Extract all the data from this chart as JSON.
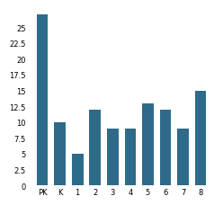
{
  "categories": [
    "PK",
    "K",
    "1",
    "2",
    "3",
    "4",
    "5",
    "6",
    "7",
    "8"
  ],
  "values": [
    27,
    10,
    5,
    12,
    9,
    9,
    13,
    12,
    9,
    15
  ],
  "bar_color": "#2e6b8a",
  "ylim_max": 28,
  "yticks": [
    0,
    2.5,
    5,
    7.5,
    10,
    12.5,
    15,
    17.5,
    20,
    22.5,
    25
  ],
  "background_color": "#ffffff",
  "tick_labelsize": 6,
  "bar_width": 0.65
}
